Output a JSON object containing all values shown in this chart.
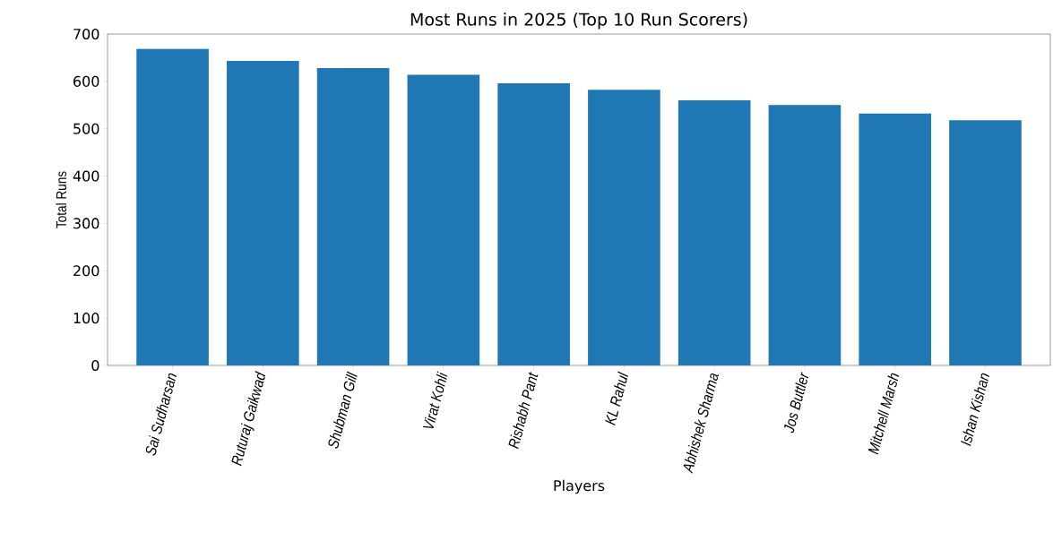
{
  "chart_data": {
    "type": "bar",
    "title": "Most Runs in 2025 (Top 10 Run Scorers)",
    "xlabel": "Players",
    "ylabel": "Total Runs",
    "categories": [
      "Sai Sudharsan",
      "Ruturaj Gaikwad",
      "Shubman Gill",
      "Virat Kohli",
      "Rishabh Pant",
      "KL Rahul",
      "Abhishek Sharma",
      "Jos Buttler",
      "Mitchell Marsh",
      "Ishan Kishan"
    ],
    "values": [
      669,
      643,
      628,
      614,
      596,
      582,
      560,
      550,
      532,
      518
    ],
    "color": "#1f77b4",
    "ylim": [
      0,
      700
    ],
    "yticks": [
      0,
      100,
      200,
      300,
      400,
      500,
      600,
      700
    ]
  }
}
